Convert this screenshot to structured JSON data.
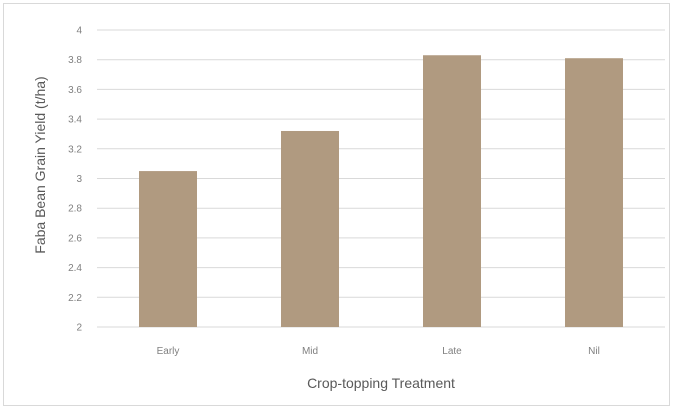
{
  "chart_data": {
    "type": "bar",
    "categories": [
      "Early",
      "Mid",
      "Late",
      "Nil"
    ],
    "values": [
      3.05,
      3.32,
      3.83,
      3.81
    ],
    "xlabel": "Crop-topping Treatment",
    "ylabel": "Faba Bean Grain Yield (t/ha)",
    "ylim": [
      2,
      4
    ],
    "yticks": [
      "2",
      "2.2",
      "2.4",
      "2.6",
      "2.8",
      "3",
      "3.2",
      "3.4",
      "3.6",
      "3.8",
      "4"
    ],
    "grid": true,
    "legend": "none",
    "bar_color": "#b09a80",
    "grid_color": "#d9d9d9"
  }
}
